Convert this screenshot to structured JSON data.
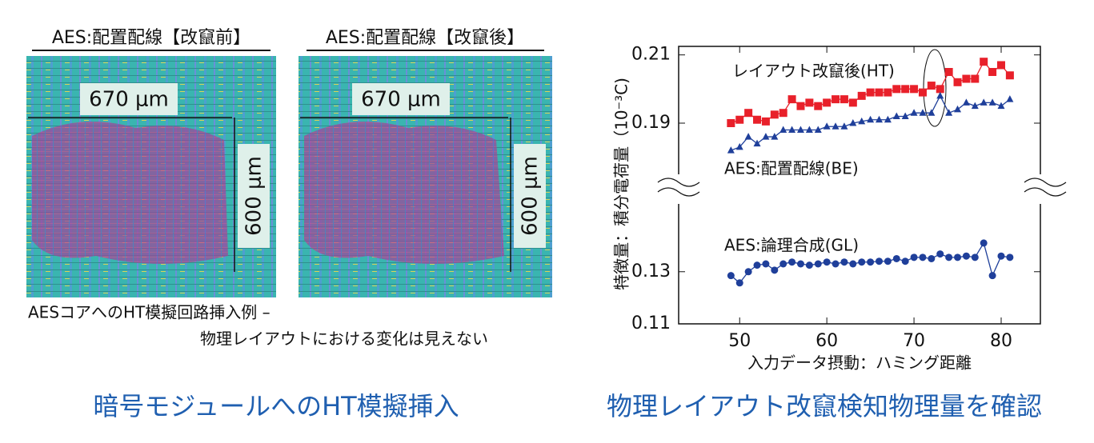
{
  "left": {
    "titles": [
      "AES:配置配線【改竄前】",
      "AES:配置配線【改竄後】"
    ],
    "width_label": "670 μm",
    "height_label": "600 μm",
    "caption": [
      "AESコアへのHT模擬回路挿入例 –",
      "物理レイアウトにおける変化は見えない"
    ],
    "heading": "暗号モジュールへのHT模擬挿入"
  },
  "right_heading": "物理レイアウト改竄検知物理量を確認",
  "chart_data": [
    {
      "type": "line",
      "ylabel": "特徴量：積分電荷量（10⁻³C)",
      "xlim": [
        43,
        84.5
      ],
      "ylim": [
        0.175,
        0.2125
      ],
      "yticks": [
        0.19,
        0.21
      ],
      "x": [
        49,
        50,
        51,
        52,
        53,
        54,
        55,
        56,
        57,
        58,
        59,
        60,
        61,
        62,
        63,
        64,
        65,
        66,
        67,
        68,
        69,
        70,
        71,
        72,
        73,
        74,
        75,
        76,
        77,
        78,
        79,
        80,
        81
      ],
      "series": [
        {
          "name": "レイアウト改竄後(HT)",
          "color": "#e8202a",
          "marker": "square",
          "values": [
            0.19,
            0.191,
            0.193,
            0.191,
            0.1905,
            0.1925,
            0.193,
            0.197,
            0.195,
            0.196,
            0.195,
            0.196,
            0.197,
            0.197,
            0.196,
            0.198,
            0.199,
            0.199,
            0.199,
            0.2,
            0.2,
            0.2,
            0.199,
            0.201,
            0.2,
            0.205,
            0.202,
            0.203,
            0.203,
            0.208,
            0.205,
            0.207,
            0.204
          ]
        },
        {
          "name": "AES:配置配線(BE)",
          "color": "#1f3f9a",
          "marker": "triangle",
          "values": [
            0.182,
            0.183,
            0.186,
            0.184,
            0.186,
            0.186,
            0.188,
            0.188,
            0.188,
            0.188,
            0.188,
            0.189,
            0.189,
            0.189,
            0.19,
            0.1905,
            0.191,
            0.191,
            0.191,
            0.192,
            0.192,
            0.193,
            0.193,
            0.193,
            0.198,
            0.193,
            0.194,
            0.196,
            0.195,
            0.196,
            0.196,
            0.195,
            0.197
          ]
        }
      ]
    },
    {
      "type": "line",
      "xlabel": "入力データ摂動：ハミング距離",
      "xlim": [
        43,
        84.5
      ],
      "xticks": [
        50,
        60,
        70,
        80
      ],
      "ylim": [
        0.11,
        0.156
      ],
      "yticks": [
        0.11,
        0.13
      ],
      "x": [
        49,
        50,
        51,
        52,
        53,
        54,
        55,
        56,
        57,
        58,
        59,
        60,
        61,
        62,
        63,
        64,
        65,
        66,
        67,
        68,
        69,
        70,
        71,
        72,
        73,
        74,
        75,
        76,
        77,
        78,
        79,
        80,
        81
      ],
      "series": [
        {
          "name": "AES:論理合成(GL)",
          "color": "#1f3f9a",
          "marker": "circle",
          "values": [
            0.1285,
            0.1257,
            0.13,
            0.1325,
            0.133,
            0.1306,
            0.133,
            0.1337,
            0.133,
            0.1325,
            0.133,
            0.1337,
            0.133,
            0.1337,
            0.133,
            0.1337,
            0.1337,
            0.134,
            0.134,
            0.135,
            0.134,
            0.1355,
            0.1355,
            0.135,
            0.1368,
            0.1355,
            0.1355,
            0.136,
            0.1355,
            0.141,
            0.1285,
            0.136,
            0.1355
          ]
        }
      ]
    }
  ]
}
